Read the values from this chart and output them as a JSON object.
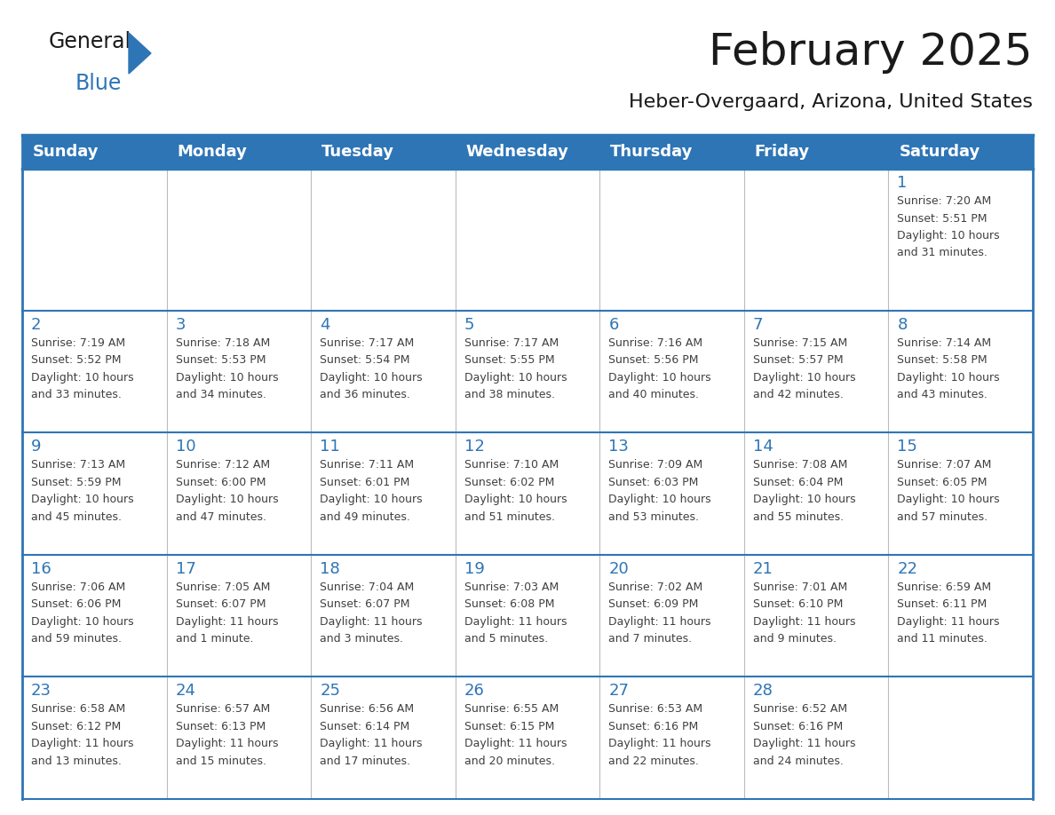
{
  "title": "February 2025",
  "subtitle": "Heber-Overgaard, Arizona, United States",
  "header_bg": "#2E75B6",
  "header_text_color": "#FFFFFF",
  "cell_bg": "#FFFFFF",
  "day_num_color": "#2E75B6",
  "text_color": "#404040",
  "border_color": "#2E75B6",
  "grid_color": "#BBBBBB",
  "days_of_week": [
    "Sunday",
    "Monday",
    "Tuesday",
    "Wednesday",
    "Thursday",
    "Friday",
    "Saturday"
  ],
  "weeks": [
    [
      {
        "day": null,
        "sunrise": null,
        "sunset": null,
        "daylight": null
      },
      {
        "day": null,
        "sunrise": null,
        "sunset": null,
        "daylight": null
      },
      {
        "day": null,
        "sunrise": null,
        "sunset": null,
        "daylight": null
      },
      {
        "day": null,
        "sunrise": null,
        "sunset": null,
        "daylight": null
      },
      {
        "day": null,
        "sunrise": null,
        "sunset": null,
        "daylight": null
      },
      {
        "day": null,
        "sunrise": null,
        "sunset": null,
        "daylight": null
      },
      {
        "day": 1,
        "sunrise": "7:20 AM",
        "sunset": "5:51 PM",
        "daylight": "10 hours\nand 31 minutes."
      }
    ],
    [
      {
        "day": 2,
        "sunrise": "7:19 AM",
        "sunset": "5:52 PM",
        "daylight": "10 hours\nand 33 minutes."
      },
      {
        "day": 3,
        "sunrise": "7:18 AM",
        "sunset": "5:53 PM",
        "daylight": "10 hours\nand 34 minutes."
      },
      {
        "day": 4,
        "sunrise": "7:17 AM",
        "sunset": "5:54 PM",
        "daylight": "10 hours\nand 36 minutes."
      },
      {
        "day": 5,
        "sunrise": "7:17 AM",
        "sunset": "5:55 PM",
        "daylight": "10 hours\nand 38 minutes."
      },
      {
        "day": 6,
        "sunrise": "7:16 AM",
        "sunset": "5:56 PM",
        "daylight": "10 hours\nand 40 minutes."
      },
      {
        "day": 7,
        "sunrise": "7:15 AM",
        "sunset": "5:57 PM",
        "daylight": "10 hours\nand 42 minutes."
      },
      {
        "day": 8,
        "sunrise": "7:14 AM",
        "sunset": "5:58 PM",
        "daylight": "10 hours\nand 43 minutes."
      }
    ],
    [
      {
        "day": 9,
        "sunrise": "7:13 AM",
        "sunset": "5:59 PM",
        "daylight": "10 hours\nand 45 minutes."
      },
      {
        "day": 10,
        "sunrise": "7:12 AM",
        "sunset": "6:00 PM",
        "daylight": "10 hours\nand 47 minutes."
      },
      {
        "day": 11,
        "sunrise": "7:11 AM",
        "sunset": "6:01 PM",
        "daylight": "10 hours\nand 49 minutes."
      },
      {
        "day": 12,
        "sunrise": "7:10 AM",
        "sunset": "6:02 PM",
        "daylight": "10 hours\nand 51 minutes."
      },
      {
        "day": 13,
        "sunrise": "7:09 AM",
        "sunset": "6:03 PM",
        "daylight": "10 hours\nand 53 minutes."
      },
      {
        "day": 14,
        "sunrise": "7:08 AM",
        "sunset": "6:04 PM",
        "daylight": "10 hours\nand 55 minutes."
      },
      {
        "day": 15,
        "sunrise": "7:07 AM",
        "sunset": "6:05 PM",
        "daylight": "10 hours\nand 57 minutes."
      }
    ],
    [
      {
        "day": 16,
        "sunrise": "7:06 AM",
        "sunset": "6:06 PM",
        "daylight": "10 hours\nand 59 minutes."
      },
      {
        "day": 17,
        "sunrise": "7:05 AM",
        "sunset": "6:07 PM",
        "daylight": "11 hours\nand 1 minute."
      },
      {
        "day": 18,
        "sunrise": "7:04 AM",
        "sunset": "6:07 PM",
        "daylight": "11 hours\nand 3 minutes."
      },
      {
        "day": 19,
        "sunrise": "7:03 AM",
        "sunset": "6:08 PM",
        "daylight": "11 hours\nand 5 minutes."
      },
      {
        "day": 20,
        "sunrise": "7:02 AM",
        "sunset": "6:09 PM",
        "daylight": "11 hours\nand 7 minutes."
      },
      {
        "day": 21,
        "sunrise": "7:01 AM",
        "sunset": "6:10 PM",
        "daylight": "11 hours\nand 9 minutes."
      },
      {
        "day": 22,
        "sunrise": "6:59 AM",
        "sunset": "6:11 PM",
        "daylight": "11 hours\nand 11 minutes."
      }
    ],
    [
      {
        "day": 23,
        "sunrise": "6:58 AM",
        "sunset": "6:12 PM",
        "daylight": "11 hours\nand 13 minutes."
      },
      {
        "day": 24,
        "sunrise": "6:57 AM",
        "sunset": "6:13 PM",
        "daylight": "11 hours\nand 15 minutes."
      },
      {
        "day": 25,
        "sunrise": "6:56 AM",
        "sunset": "6:14 PM",
        "daylight": "11 hours\nand 17 minutes."
      },
      {
        "day": 26,
        "sunrise": "6:55 AM",
        "sunset": "6:15 PM",
        "daylight": "11 hours\nand 20 minutes."
      },
      {
        "day": 27,
        "sunrise": "6:53 AM",
        "sunset": "6:16 PM",
        "daylight": "11 hours\nand 22 minutes."
      },
      {
        "day": 28,
        "sunrise": "6:52 AM",
        "sunset": "6:16 PM",
        "daylight": "11 hours\nand 24 minutes."
      },
      {
        "day": null,
        "sunrise": null,
        "sunset": null,
        "daylight": null
      }
    ]
  ],
  "logo_general_color": "#1a1a1a",
  "logo_blue_color": "#2E75B6",
  "title_fontsize": 36,
  "subtitle_fontsize": 16,
  "header_fontsize": 13,
  "day_num_fontsize": 13,
  "cell_text_fontsize": 9
}
